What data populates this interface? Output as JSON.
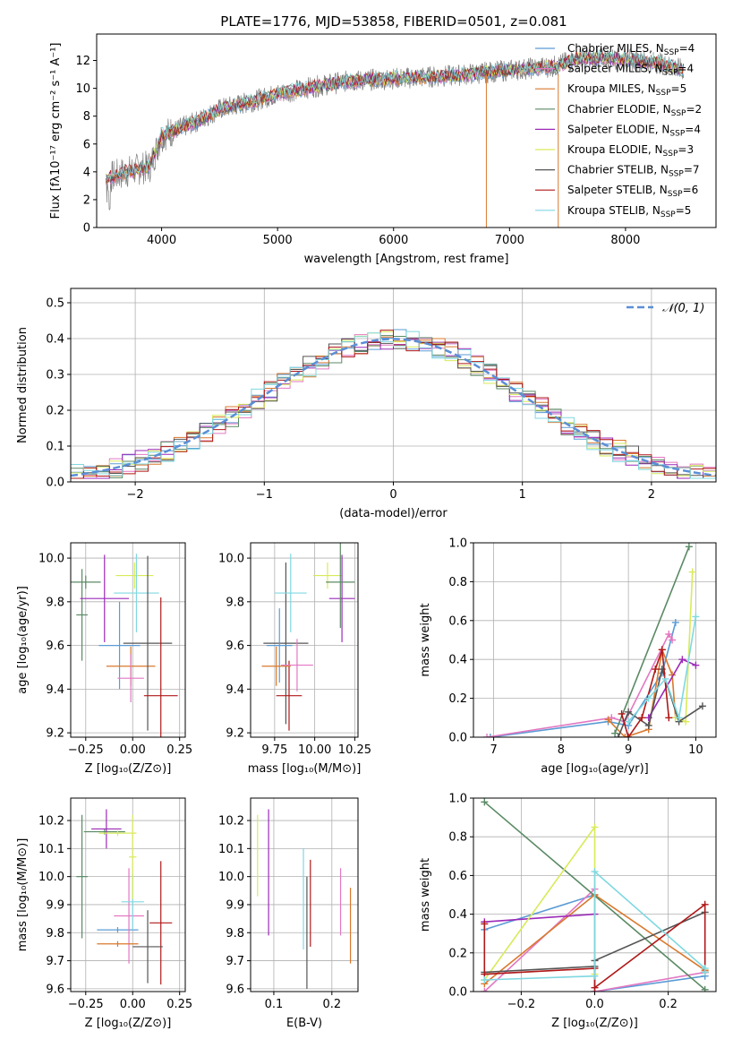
{
  "figure": {
    "title": "PLATE=1776, MJD=53858, FIBERID=0501, z=0.081"
  },
  "chart_data": [
    {
      "id": "spectrum",
      "type": "line",
      "xlabel": "wavelength [Angstrom, rest frame]",
      "ylabel": "Flux [fλ10⁻¹⁷ erg cm⁻² s⁻¹ A⁻¹]",
      "xlim": [
        3440,
        8780
      ],
      "ylim": [
        0,
        13.9
      ],
      "xticks": [
        4000,
        5000,
        6000,
        7000,
        8000
      ],
      "yticks": [
        0,
        2,
        4,
        6,
        8,
        10,
        12
      ],
      "grid": false,
      "legend_position": "top-right",
      "continuum_x": [
        3520,
        3700,
        3900,
        4000,
        4300,
        4500,
        4800,
        5000,
        5300,
        5600,
        6000,
        6500,
        7000,
        7400,
        7600,
        8000,
        8300,
        8500
      ],
      "continuum_y": [
        3.5,
        4.0,
        4.4,
        6.6,
        7.6,
        8.5,
        9.1,
        9.6,
        10.1,
        10.5,
        10.7,
        10.9,
        11.3,
        11.6,
        12.2,
        12.1,
        11.8,
        11.3
      ],
      "series": [
        {
          "name": "Chabrier MILES, N_SSP=4",
          "color": "#5b9bd5"
        },
        {
          "name": "Salpeter MILES, N_SSP=4",
          "color": "#e377c2"
        },
        {
          "name": "Kroupa MILES, N_SSP=5",
          "color": "#d9782d"
        },
        {
          "name": "Chabrier ELODIE, N_SSP=2",
          "color": "#5a8a64"
        },
        {
          "name": "Salpeter ELODIE, N_SSP=4",
          "color": "#9c2ab8"
        },
        {
          "name": "Kroupa ELODIE, N_SSP=3",
          "color": "#d9ea5a"
        },
        {
          "name": "Chabrier STELIB, N_SSP=7",
          "color": "#555555"
        },
        {
          "name": "Salpeter STELIB, N_SSP=6",
          "color": "#b01818"
        },
        {
          "name": "Kroupa STELIB, N_SSP=5",
          "color": "#7fd8e0"
        }
      ]
    },
    {
      "id": "residuals",
      "type": "line",
      "xlabel": "(data-model)/error",
      "ylabel": "Normed distribution",
      "xlim": [
        -2.5,
        2.5
      ],
      "ylim": [
        0,
        0.54
      ],
      "xticks": [
        -2,
        -1,
        0,
        1,
        2
      ],
      "xtick_labels": [
        "−2",
        "−1",
        "0",
        "1",
        "2"
      ],
      "yticks": [
        0.0,
        0.1,
        0.2,
        0.3,
        0.4,
        0.5
      ],
      "ytick_labels": [
        "0.0",
        "0.1",
        "0.2",
        "0.3",
        "0.4",
        "0.5"
      ],
      "grid": true,
      "legend": "𝒩(0, 1)",
      "legend_position": "top-right",
      "gaussian": {
        "mean": 0,
        "sigma": 1,
        "color": "#5b8ed6"
      },
      "bin_width": 0.1
    },
    {
      "id": "z-age",
      "type": "scatter",
      "xlabel": "Z [log₁₀(Z/Z⊙)]",
      "ylabel": "age  [log₁₀(age/yr)]",
      "xlim": [
        -0.33,
        0.28
      ],
      "ylim": [
        9.18,
        10.07
      ],
      "xticks": [
        -0.25,
        0.0,
        0.25
      ],
      "xtick_labels": [
        "−0.25",
        "0.00",
        "0.25"
      ],
      "yticks": [
        9.2,
        9.4,
        9.6,
        9.8,
        10.0
      ],
      "ytick_labels": [
        "9.2",
        "9.4",
        "9.6",
        "9.8",
        "10.0"
      ],
      "grid": true,
      "points": [
        {
          "x": -0.27,
          "xerr": 0.03,
          "y": 9.74,
          "yerr": 0.21,
          "color": "#5a8a64"
        },
        {
          "x": -0.25,
          "xerr": 0.08,
          "y": 9.89,
          "yerr": 0.03,
          "color": "#5a8a64"
        },
        {
          "x": -0.15,
          "xerr": 0.13,
          "y": 9.815,
          "yerr": 0.2,
          "color": "#9c2ab8"
        },
        {
          "x": -0.07,
          "xerr": 0.11,
          "y": 9.6,
          "yerr": 0.2,
          "color": "#5b9bd5"
        },
        {
          "x": -0.01,
          "xerr": 0.13,
          "y": 9.505,
          "yerr": 0.09,
          "color": "#d9782d"
        },
        {
          "x": -0.01,
          "xerr": 0.07,
          "y": 9.45,
          "yerr": 0.11,
          "color": "#e377c2"
        },
        {
          "x": 0.01,
          "xerr": 0.1,
          "y": 9.92,
          "yerr": 0.06,
          "color": "#d9ea5a"
        },
        {
          "x": 0.02,
          "xerr": 0.12,
          "y": 9.84,
          "yerr": 0.18,
          "color": "#7fd8e0"
        },
        {
          "x": 0.08,
          "xerr": 0.13,
          "y": 9.61,
          "yerr": 0.4,
          "color": "#555555"
        },
        {
          "x": 0.15,
          "xerr": 0.09,
          "y": 9.37,
          "yerr": 0.45,
          "color": "#b01818"
        }
      ]
    },
    {
      "id": "mass-age",
      "type": "scatter",
      "xlabel": "mass [log₁₀(M/M⊙)]",
      "ylabel": "",
      "xlim": [
        9.6,
        10.27
      ],
      "ylim": [
        9.18,
        10.07
      ],
      "xticks": [
        9.75,
        10.0,
        10.25
      ],
      "xtick_labels": [
        "9.75",
        "10.00",
        "10.25"
      ],
      "yticks": [
        9.2,
        9.4,
        9.6,
        9.8,
        10.0
      ],
      "ytick_labels": [
        "9.2",
        "9.4",
        "9.6",
        "9.8",
        "10.0"
      ],
      "grid": true,
      "points": [
        {
          "x": 9.82,
          "xerr": 0.14,
          "y": 9.61,
          "yerr": 0.37,
          "color": "#555555"
        },
        {
          "x": 9.78,
          "xerr": 0.08,
          "y": 9.6,
          "yerr": 0.17,
          "color": "#5b9bd5"
        },
        {
          "x": 9.84,
          "xerr": 0.08,
          "y": 9.37,
          "yerr": 0.16,
          "color": "#b01818"
        },
        {
          "x": 9.85,
          "xerr": 0.1,
          "y": 9.84,
          "yerr": 0.18,
          "color": "#7fd8e0"
        },
        {
          "x": 9.76,
          "xerr": 0.09,
          "y": 9.505,
          "yerr": 0.09,
          "color": "#d9782d"
        },
        {
          "x": 9.89,
          "xerr": 0.1,
          "y": 9.51,
          "yerr": 0.12,
          "color": "#e377c2"
        },
        {
          "x": 10.08,
          "xerr": 0.09,
          "y": 9.92,
          "yerr": 0.06,
          "color": "#d9ea5a"
        },
        {
          "x": 10.17,
          "xerr": 0.08,
          "y": 9.815,
          "yerr": 0.2,
          "color": "#9c2ab8"
        },
        {
          "x": 10.16,
          "xerr": 0.09,
          "y": 9.89,
          "yerr": 0.21,
          "color": "#5a8a64"
        }
      ]
    },
    {
      "id": "age-weight",
      "type": "line",
      "xlabel": "age  [log₁₀(age/yr)]",
      "ylabel": "mass weight",
      "xlim": [
        6.7,
        10.3
      ],
      "ylim": [
        0,
        1.0
      ],
      "xticks": [
        7,
        8,
        9,
        10
      ],
      "yticks": [
        0.0,
        0.2,
        0.4,
        0.6,
        0.8,
        1.0
      ],
      "ytick_labels": [
        "0.0",
        "0.2",
        "0.4",
        "0.6",
        "0.8",
        "1.0"
      ],
      "grid": true,
      "series": [
        {
          "color": "#5b9bd5",
          "x": [
            6.95,
            8.7,
            9.0,
            9.5,
            9.7
          ],
          "y": [
            0.0,
            0.08,
            0.06,
            0.33,
            0.59
          ]
        },
        {
          "color": "#e377c2",
          "x": [
            6.9,
            8.75,
            8.95,
            9.6,
            9.65
          ],
          "y": [
            0.0,
            0.1,
            0.08,
            0.53,
            0.5
          ]
        },
        {
          "color": "#d9782d",
          "x": [
            8.7,
            8.95,
            9.3,
            9.5,
            9.65,
            9.7
          ],
          "y": [
            0.09,
            0.0,
            0.04,
            0.45,
            0.32,
            0.1
          ]
        },
        {
          "color": "#5a8a64",
          "x": [
            8.8,
            9.9
          ],
          "y": [
            0.02,
            0.98
          ]
        },
        {
          "color": "#9c2ab8",
          "x": [
            9.3,
            9.8,
            10.0
          ],
          "y": [
            0.1,
            0.4,
            0.37
          ]
        },
        {
          "color": "#d9ea5a",
          "x": [
            9.7,
            9.85,
            9.95
          ],
          "y": [
            0.1,
            0.08,
            0.85
          ]
        },
        {
          "color": "#555555",
          "x": [
            8.85,
            9.0,
            9.3,
            9.5,
            9.75,
            10.1
          ],
          "y": [
            0.0,
            0.13,
            0.06,
            0.35,
            0.08,
            0.16
          ]
        },
        {
          "color": "#b01818",
          "x": [
            8.9,
            9.0,
            9.2,
            9.4,
            9.5,
            9.6
          ],
          "y": [
            0.12,
            0.0,
            0.1,
            0.35,
            0.45,
            0.1
          ]
        },
        {
          "color": "#7fd8e0",
          "x": [
            9.0,
            9.3,
            9.55,
            9.75,
            10.0
          ],
          "y": [
            0.08,
            0.2,
            0.3,
            0.1,
            0.62
          ]
        }
      ]
    },
    {
      "id": "z-mass",
      "type": "scatter",
      "xlabel": "Z [log₁₀(Z/Z⊙)]",
      "ylabel": "mass [log₁₀(M/M⊙)]",
      "xlim": [
        -0.33,
        0.28
      ],
      "ylim": [
        9.59,
        10.28
      ],
      "xticks": [
        -0.25,
        0.0,
        0.25
      ],
      "xtick_labels": [
        "−0.25",
        "0.00",
        "0.25"
      ],
      "yticks": [
        9.6,
        9.7,
        9.8,
        9.9,
        10.0,
        10.1,
        10.2
      ],
      "ytick_labels": [
        "9.6",
        "9.7",
        "9.8",
        "9.9",
        "10.0",
        "10.1",
        "10.2"
      ],
      "grid": true,
      "points": [
        {
          "x": -0.27,
          "xerr": 0.03,
          "y": 10.0,
          "yerr": 0.22,
          "color": "#5a8a64"
        },
        {
          "x": -0.15,
          "xerr": 0.11,
          "y": 10.16,
          "yerr": 0.01,
          "color": "#5a8a64"
        },
        {
          "x": -0.14,
          "xerr": 0.08,
          "y": 10.17,
          "yerr": 0.07,
          "color": "#9c2ab8"
        },
        {
          "x": -0.08,
          "xerr": 0.1,
          "y": 10.155,
          "yerr": 0.01,
          "color": "#d9ea5a"
        },
        {
          "x": -0.08,
          "xerr": 0.11,
          "y": 9.81,
          "yerr": 0.01,
          "color": "#5b9bd5"
        },
        {
          "x": -0.02,
          "xerr": 0.08,
          "y": 9.86,
          "yerr": 0.17,
          "color": "#e377c2"
        },
        {
          "x": -0.08,
          "xerr": 0.11,
          "y": 9.76,
          "yerr": 0.01,
          "color": "#d9782d"
        },
        {
          "x": 0.0,
          "xerr": 0.06,
          "y": 9.91,
          "yerr": 0.1,
          "color": "#7fd8e0"
        },
        {
          "x": 0.0,
          "xerr": 0.02,
          "y": 10.07,
          "yerr": 0.15,
          "color": "#d9ea5a"
        },
        {
          "x": 0.15,
          "xerr": 0.06,
          "y": 9.835,
          "yerr": 0.22,
          "color": "#b01818"
        },
        {
          "x": 0.08,
          "xerr": 0.08,
          "y": 9.75,
          "yerr": 0.13,
          "color": "#555555"
        }
      ]
    },
    {
      "id": "ebv-mass",
      "type": "scatter",
      "xlabel": "E(B-V)",
      "ylabel": "",
      "xlim": [
        0.06,
        0.245
      ],
      "ylim": [
        9.59,
        10.28
      ],
      "xticks": [
        0.1,
        0.2
      ],
      "xtick_labels": [
        "0.1",
        "0.2"
      ],
      "yticks": [
        9.6,
        9.7,
        9.8,
        9.9,
        10.0,
        10.1,
        10.2
      ],
      "ytick_labels": [
        "9.6",
        "9.7",
        "9.8",
        "9.9",
        "10.0",
        "10.1",
        "10.2"
      ],
      "grid": true,
      "points": [
        {
          "x": 0.072,
          "y": 10.075,
          "yerr": 0.145,
          "color": "#d9ea5a"
        },
        {
          "x": 0.091,
          "y": 10.015,
          "yerr": 0.225,
          "color": "#9c2ab8"
        },
        {
          "x": 0.151,
          "y": 9.92,
          "yerr": 0.18,
          "color": "#7fd8e0"
        },
        {
          "x": 0.157,
          "y": 9.8,
          "yerr": 0.2,
          "color": "#555555"
        },
        {
          "x": 0.163,
          "y": 9.905,
          "yerr": 0.155,
          "color": "#b01818"
        },
        {
          "x": 0.215,
          "y": 9.91,
          "yerr": 0.12,
          "color": "#e377c2"
        },
        {
          "x": 0.232,
          "y": 9.825,
          "yerr": 0.135,
          "color": "#d9782d"
        }
      ]
    },
    {
      "id": "z-weight",
      "type": "line",
      "xlabel": "Z [log₁₀(Z/Z⊙)]",
      "ylabel": "mass weight",
      "xlim": [
        -0.33,
        0.33
      ],
      "ylim": [
        0,
        1.0
      ],
      "xticks": [
        -0.2,
        0.0,
        0.2
      ],
      "xtick_labels": [
        "−0.2",
        "0.0",
        "0.2"
      ],
      "yticks": [
        0.0,
        0.2,
        0.4,
        0.6,
        0.8,
        1.0
      ],
      "ytick_labels": [
        "0.0",
        "0.2",
        "0.4",
        "0.6",
        "0.8",
        "1.0"
      ],
      "grid": true,
      "series": [
        {
          "color": "#5b9bd5",
          "x": [
            -0.3,
            0.0,
            0.0,
            0.3
          ],
          "y": [
            0.32,
            0.5,
            0.0,
            0.08
          ]
        },
        {
          "color": "#e377c2",
          "x": [
            -0.3,
            0.0,
            0.0,
            0.3
          ],
          "y": [
            0.0,
            0.53,
            0.0,
            0.1
          ]
        },
        {
          "color": "#d9782d",
          "x": [
            -0.3,
            0.0,
            0.3,
            0.3
          ],
          "y": [
            0.04,
            0.5,
            0.11,
            0.1
          ]
        },
        {
          "color": "#5a8a64",
          "x": [
            -0.3,
            0.3
          ],
          "y": [
            0.98,
            0.01
          ]
        },
        {
          "color": "#9c2ab8",
          "x": [
            -0.3,
            0.0
          ],
          "y": [
            0.36,
            0.4
          ]
        },
        {
          "color": "#d9ea5a",
          "x": [
            -0.3,
            0.0,
            0.0
          ],
          "y": [
            0.06,
            0.85,
            0.09
          ]
        },
        {
          "color": "#555555",
          "x": [
            -0.3,
            0.0,
            0.0,
            0.3
          ],
          "y": [
            0.1,
            0.13,
            0.16,
            0.41
          ]
        },
        {
          "color": "#b01818",
          "x": [
            -0.3,
            -0.3,
            0.0,
            0.0,
            0.3,
            0.3
          ],
          "y": [
            0.35,
            0.09,
            0.12,
            0.02,
            0.45,
            0.1
          ]
        },
        {
          "color": "#7fd8e0",
          "x": [
            -0.3,
            0.0,
            0.0,
            0.3,
            0.3
          ],
          "y": [
            0.06,
            0.08,
            0.62,
            0.12,
            0.1
          ]
        }
      ]
    }
  ]
}
